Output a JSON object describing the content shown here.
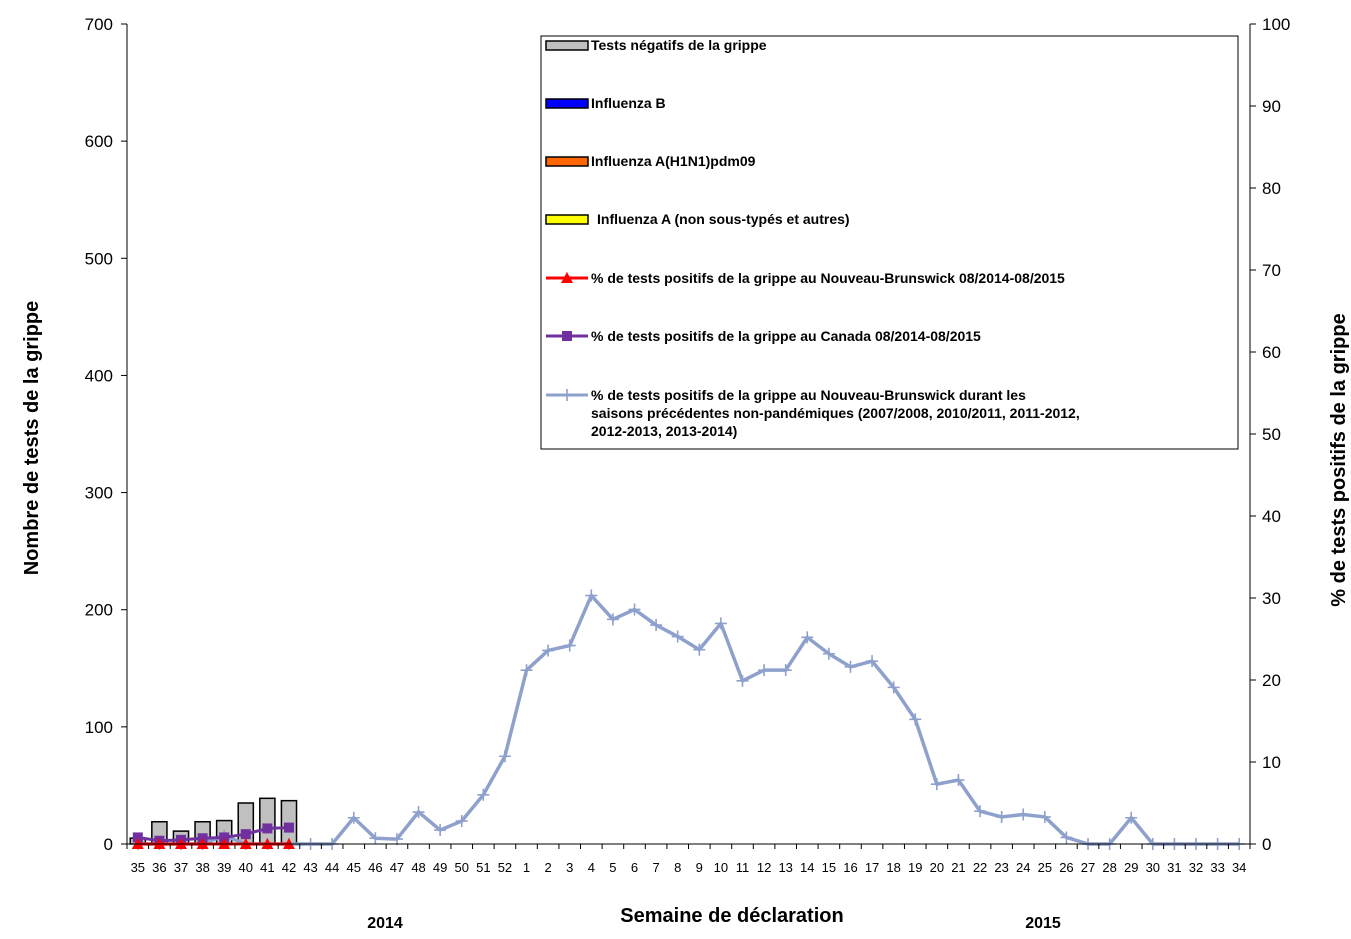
{
  "chart_data": {
    "type": "bar",
    "xlabel": "Semaine de déclaration",
    "ylabel_left": "Nombre de tests de la grippe",
    "ylabel_right": "% de tests positifs de la grippe",
    "ylim_left": [
      0,
      700
    ],
    "ylim_right": [
      0,
      100
    ],
    "yticks_left": [
      "0",
      "100",
      "200",
      "300",
      "400",
      "500",
      "600",
      "700"
    ],
    "yticks_right": [
      "0",
      "10",
      "20",
      "30",
      "40",
      "50",
      "60",
      "70",
      "80",
      "90",
      "100"
    ],
    "year_labels": [
      "2014",
      "2015"
    ],
    "categories": [
      "35",
      "36",
      "37",
      "38",
      "39",
      "40",
      "41",
      "42",
      "43",
      "44",
      "45",
      "46",
      "47",
      "48",
      "49",
      "50",
      "51",
      "52",
      "1",
      "2",
      "3",
      "4",
      "5",
      "6",
      "7",
      "8",
      "9",
      "10",
      "11",
      "12",
      "13",
      "14",
      "15",
      "16",
      "17",
      "18",
      "19",
      "20",
      "21",
      "22",
      "23",
      "24",
      "25",
      "26",
      "27",
      "28",
      "29",
      "30",
      "31",
      "32",
      "33",
      "34"
    ],
    "legend": [
      {
        "label": "Tests négatifs de la grippe",
        "kind": "bar",
        "color": "#c0c0c0"
      },
      {
        "label": "Influenza B",
        "kind": "bar",
        "color": "#0000ff"
      },
      {
        "label": "Influenza A(H1N1)pdm09",
        "kind": "bar",
        "color": "#ff6600"
      },
      {
        "label": "Influenza A (non sous-typés et autres)",
        "kind": "bar",
        "color": "#ffff00"
      },
      {
        "label": "% de tests positifs de la grippe  au Nouveau-Brunswick 08/2014-08/2015",
        "kind": "line",
        "color": "#ff0000",
        "marker": "triangle"
      },
      {
        "label": "% de tests positifs de la grippe  au Canada 08/2014-08/2015",
        "kind": "line",
        "color": "#7030a0",
        "marker": "square"
      },
      {
        "label": "% de tests positifs de la grippe  au Nouveau-Brunswick durant les saisons précédentes non-pandémiques (2007/2008, 2010/2011, 2011-2012, 2012-2013, 2013-2014)",
        "kind": "line",
        "color": "#8ea0cc",
        "marker": "plus"
      }
    ],
    "bar_series": [
      {
        "name": "Tests négatifs de la grippe",
        "color": "#c0c0c0",
        "values": [
          5,
          19,
          11,
          19,
          20,
          35,
          39,
          37
        ]
      },
      {
        "name": "Influenza B",
        "color": "#0000ff",
        "values": [
          0,
          0,
          0,
          0,
          0,
          0,
          0,
          0
        ]
      },
      {
        "name": "Influenza A(H1N1)pdm09",
        "color": "#ff6600",
        "values": [
          0,
          0,
          0,
          0,
          0,
          0,
          0,
          0
        ]
      },
      {
        "name": "Influenza A (non sous-typés et autres)",
        "color": "#ffff00",
        "values": [
          0,
          0,
          0,
          0,
          0,
          0,
          0,
          0
        ]
      }
    ],
    "line_series": [
      {
        "name": "% de tests positifs de la grippe  au Nouveau-Brunswick 08/2014-08/2015",
        "color": "#ff0000",
        "marker": "triangle",
        "axis": "right",
        "values": [
          0,
          0,
          0,
          0,
          0,
          0,
          0,
          0
        ]
      },
      {
        "name": "% de tests positifs de la grippe  au Canada 08/2014-08/2015",
        "color": "#7030a0",
        "marker": "square",
        "axis": "right",
        "values": [
          0.8,
          0.4,
          0.5,
          0.7,
          0.8,
          1.2,
          1.9,
          2.0
        ]
      },
      {
        "name": "% de tests positifs de la grippe  au Nouveau-Brunswick durant les saisons précédentes non-pandémiques (2007/2008, 2010/2011, 2011-2012, 2012-2013, 2013-2014)",
        "color": "#8ea0cc",
        "marker": "plus",
        "axis": "right",
        "values": [
          0,
          0,
          0,
          0,
          1,
          0,
          0,
          0,
          0,
          0,
          3.2,
          0.7,
          0.6,
          3.9,
          1.7,
          2.8,
          6,
          10.7,
          21.2,
          23.6,
          24.2,
          30.3,
          27.4,
          28.6,
          26.7,
          25.3,
          23.7,
          26.9,
          19.9,
          21.2,
          21.2,
          25.2,
          23.2,
          21.6,
          22.3,
          19.1,
          15.2,
          7.3,
          7.8,
          4,
          3.3,
          3.6,
          3.3,
          0.8,
          0,
          0,
          3.2,
          0,
          0,
          0,
          0,
          0
        ]
      }
    ]
  }
}
